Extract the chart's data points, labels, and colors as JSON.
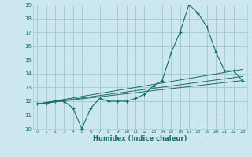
{
  "xlabel": "Humidex (Indice chaleur)",
  "ylabel": "",
  "bg_color": "#cce8ee",
  "grid_color": "#a0cdd6",
  "line_color": "#1a6b6b",
  "xlim": [
    -0.5,
    23.5
  ],
  "ylim": [
    10,
    19
  ],
  "xticks": [
    0,
    1,
    2,
    3,
    4,
    5,
    6,
    7,
    8,
    9,
    10,
    11,
    12,
    13,
    14,
    15,
    16,
    17,
    18,
    19,
    20,
    21,
    22,
    23
  ],
  "yticks": [
    10,
    11,
    12,
    13,
    14,
    15,
    16,
    17,
    18,
    19
  ],
  "series": [
    {
      "x": [
        0,
        1,
        2,
        3,
        4,
        5,
        6,
        7,
        8,
        9,
        10,
        11,
        12,
        13,
        14,
        15,
        16,
        17,
        18,
        19,
        20,
        21,
        22,
        23
      ],
      "y": [
        11.8,
        11.8,
        12.0,
        12.0,
        11.5,
        10.0,
        11.5,
        12.2,
        12.0,
        12.0,
        12.0,
        12.2,
        12.5,
        13.1,
        13.5,
        15.5,
        17.0,
        19.0,
        18.4,
        17.4,
        15.6,
        14.2,
        14.2,
        13.5
      ],
      "marker": true
    },
    {
      "x": [
        0,
        23
      ],
      "y": [
        11.8,
        13.5
      ],
      "marker": false
    },
    {
      "x": [
        0,
        23
      ],
      "y": [
        11.8,
        14.3
      ],
      "marker": false
    },
    {
      "x": [
        0,
        23
      ],
      "y": [
        11.8,
        13.8
      ],
      "marker": false
    }
  ]
}
